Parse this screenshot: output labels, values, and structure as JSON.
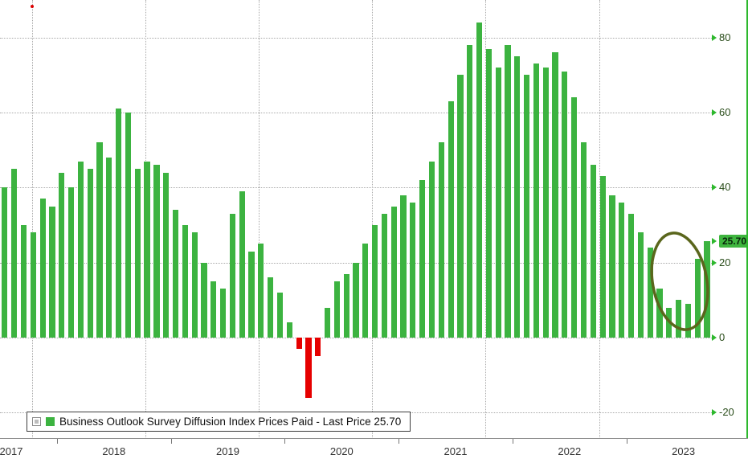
{
  "chart_data": {
    "type": "bar",
    "title": "Business Outlook Survey Diffusion Index Prices Paid",
    "legend_label": "Business Outlook Survey Diffusion Index Prices Paid - Last Price 25.70",
    "legend_position": "bottom-left",
    "last_price": 25.7,
    "last_price_label": "25.70",
    "ylim": [
      -27,
      90
    ],
    "yticks": [
      80,
      60,
      40,
      20,
      0,
      -20
    ],
    "grid": "dotted",
    "x_year_labels": [
      "2017",
      "2018",
      "2019",
      "2020",
      "2021",
      "2022",
      "2023"
    ],
    "monthly_values": {
      "2017": [
        40,
        45,
        30,
        28,
        37,
        35
      ],
      "2018": [
        44,
        40,
        47,
        45,
        52,
        48,
        61,
        60,
        45,
        47,
        46,
        44
      ],
      "2019": [
        34,
        30,
        28,
        20,
        15,
        13,
        33,
        39,
        23,
        25,
        16,
        12
      ],
      "2020": [
        4,
        -3,
        -16,
        -5,
        8,
        15,
        17,
        20,
        25,
        30,
        33,
        35
      ],
      "2021": [
        38,
        36,
        42,
        47,
        52,
        63,
        70,
        78,
        84,
        77,
        72,
        78
      ],
      "2022": [
        75,
        70,
        73,
        72,
        76,
        71,
        64,
        52,
        46,
        43,
        38,
        36
      ],
      "2023": [
        33,
        28,
        24,
        13,
        8,
        10,
        9,
        21,
        25.7
      ]
    },
    "annotation": {
      "shape": "ellipse",
      "around": "last three bars",
      "note": "hand-drawn circle highlighting the recent rise to 25.70"
    },
    "colors": {
      "positive": "#3cb340",
      "negative": "#e60000",
      "annotation": "#5a661c",
      "axis_green": "#2db82d",
      "badge_bg": "#3fb53f",
      "axis_text": "#2a4d1b",
      "marker_dot": "#dd0000"
    }
  }
}
